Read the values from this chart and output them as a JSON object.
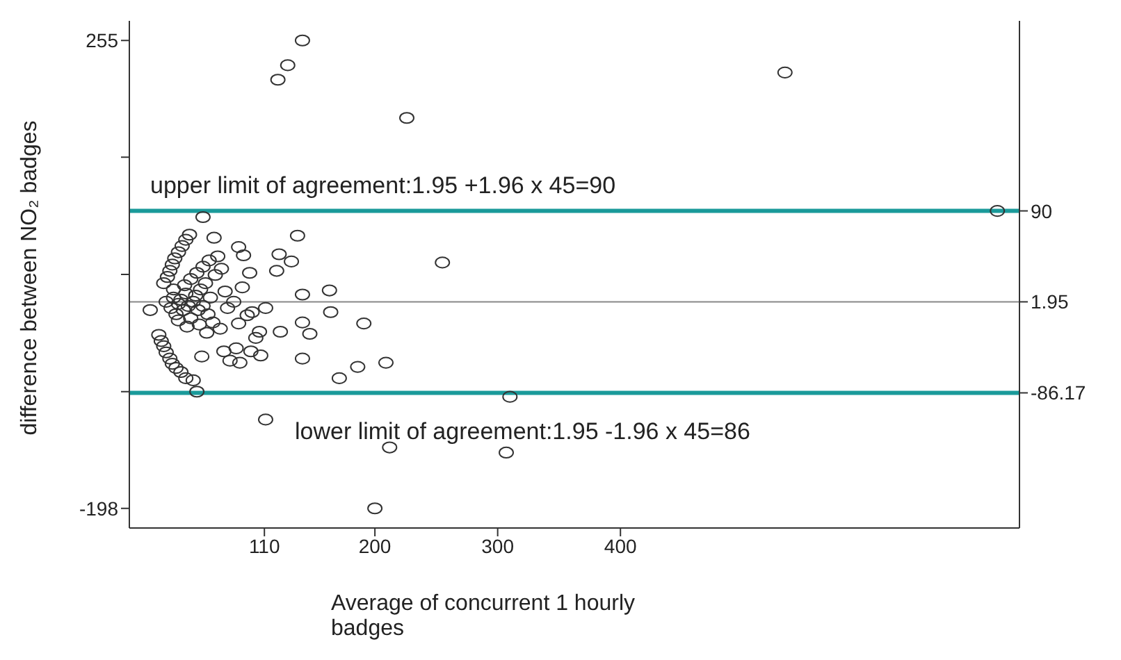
{
  "chart_data": {
    "type": "scatter",
    "xlabel": "Average of concurrent 1 hourly badges",
    "ylabel": "difference between NO₂ badges",
    "xlim": [
      0,
      725
    ],
    "xticks": [
      110,
      200,
      300,
      400
    ],
    "ylim": [
      -217,
      274
    ],
    "yticks": [
      255,
      {
        "value": 142,
        "label": null
      },
      {
        "value": 28.5,
        "label": null
      },
      {
        "value": -85,
        "label": null
      },
      -198
    ],
    "y2lim": [
      -217,
      274
    ],
    "y2ticks": [
      90,
      1.95,
      -86.17
    ],
    "marker": "circle",
    "grid": false,
    "legend": false,
    "ref_lines": [
      {
        "axis": "y",
        "value": 90,
        "color": "#1a9a9a"
      },
      {
        "axis": "y",
        "value": 1.95,
        "color": "#888888"
      },
      {
        "axis": "y",
        "value": -86.17,
        "color": "#1a9a9a"
      }
    ],
    "annotations": [
      "upper limit of agreement:1.95 +1.96 x 45=90",
      "lower limit of agreement:1.95 -1.96 x 45=86"
    ],
    "series": [
      {
        "color": "#333333",
        "x": [
          141,
          129,
          121,
          226,
          534,
          255,
          60,
          707,
          310,
          111,
          212,
          307,
          200,
          137,
          122,
          132,
          120,
          141,
          163,
          69,
          89,
          93,
          111,
          164,
          191,
          141,
          147,
          123,
          106,
          103,
          59,
          77,
          87,
          82,
          90,
          99,
          107,
          141,
          171,
          186,
          209,
          52,
          55,
          89,
          96,
          17,
          28,
          31,
          33,
          35,
          37,
          40,
          43,
          46,
          49,
          24,
          26,
          28,
          30,
          33,
          35,
          38,
          42,
          46,
          30,
          34,
          36,
          38,
          40,
          42,
          44,
          46,
          48,
          50,
          52,
          54,
          56,
          58,
          60,
          62,
          64,
          66,
          68,
          70,
          45,
          50,
          55,
          60,
          65,
          72,
          75,
          78,
          80,
          57,
          47,
          40,
          36,
          63,
          74,
          85,
          92,
          98,
          100
        ],
        "values": [
          255,
          231,
          217,
          180,
          224,
          40,
          84,
          90,
          -90,
          -112,
          -139,
          -144,
          -198,
          66,
          48,
          41,
          32,
          9,
          13,
          64,
          55,
          47,
          -4,
          -8,
          -19,
          -18,
          -29,
          -27,
          -27,
          -33,
          -51,
          -46,
          -43,
          -55,
          -57,
          -46,
          -50,
          -53,
          -72,
          -61,
          -57,
          -74,
          -85,
          -19,
          -11,
          -6,
          20,
          26,
          32,
          38,
          44,
          50,
          56,
          62,
          67,
          -30,
          -36,
          -41,
          -47,
          -53,
          -58,
          -62,
          -66,
          -72,
          2,
          -4,
          6,
          -10,
          0,
          4,
          -6,
          10,
          -2,
          -14,
          2,
          8,
          -6,
          14,
          -2,
          20,
          -10,
          6,
          -18,
          28,
          18,
          24,
          30,
          36,
          42,
          46,
          34,
          12,
          -4,
          -20,
          -22,
          -16,
          14,
          -28,
          -24,
          2,
          16,
          30,
          -8
        ]
      }
    ]
  }
}
